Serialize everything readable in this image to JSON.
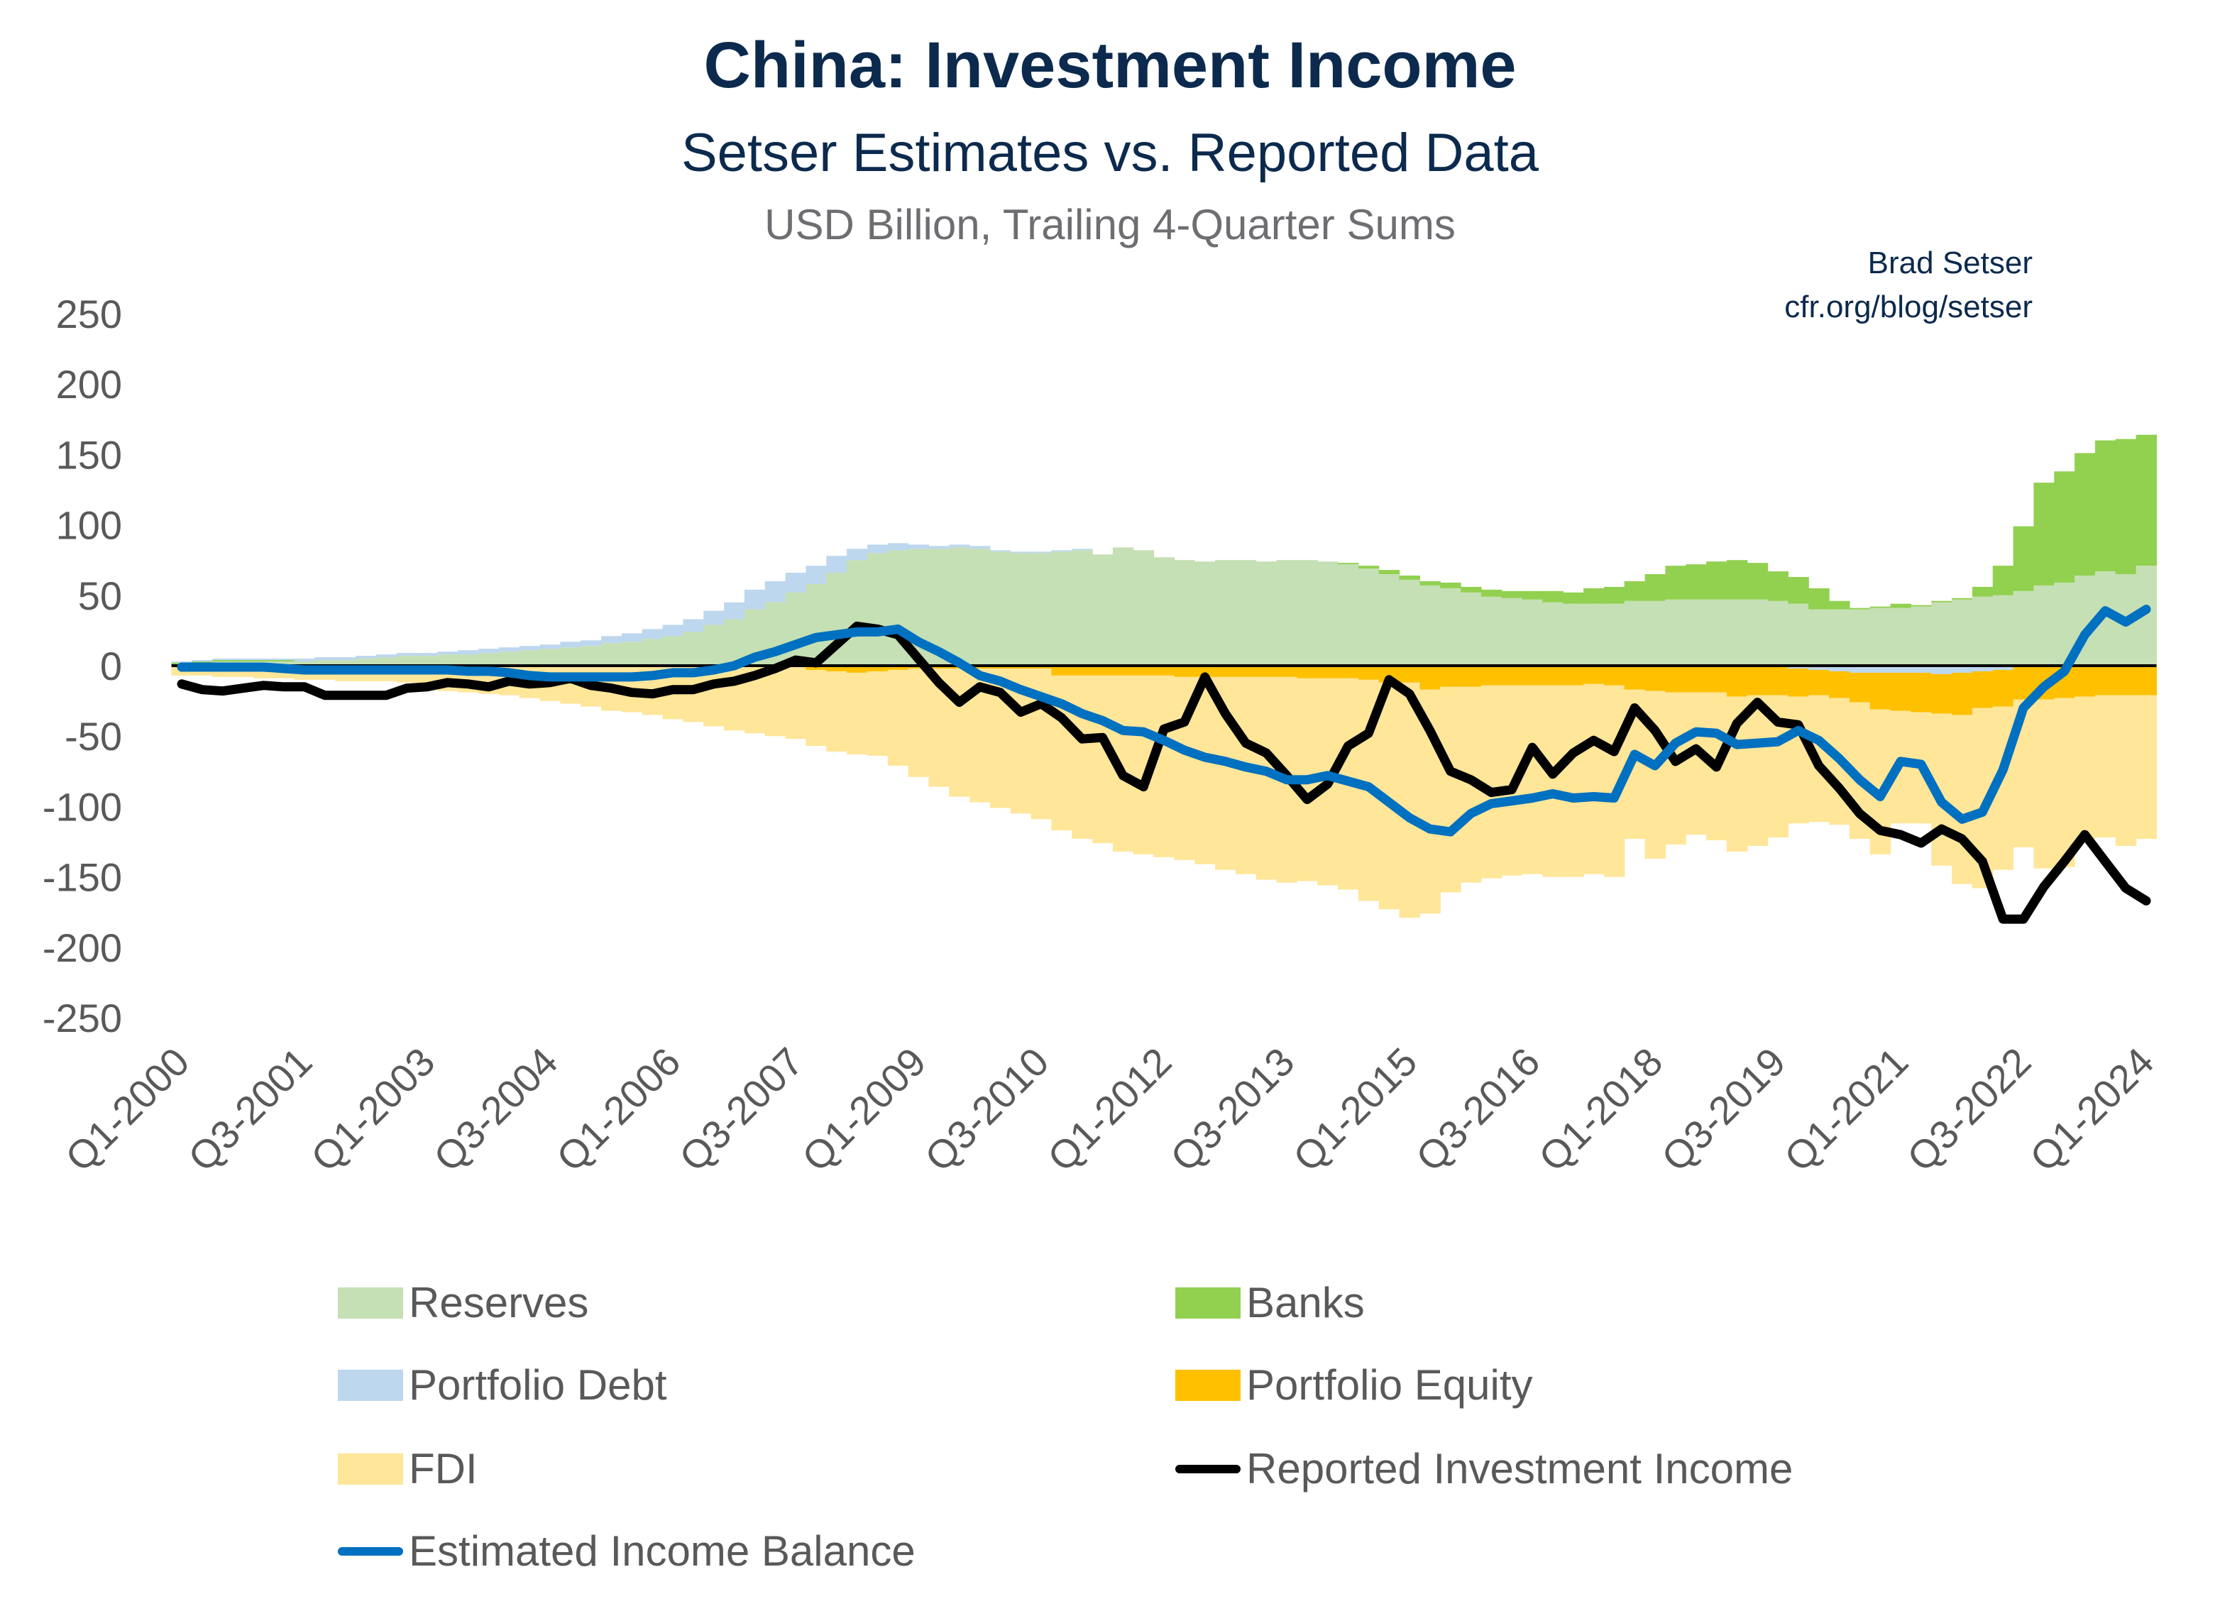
{
  "chart_data": {
    "type": "area",
    "title": "China: Investment Income",
    "subtitle": "Setser Estimates vs. Reported Data",
    "units_note": "USD Billion, Trailing 4-Quarter Sums",
    "attribution": [
      "Brad Setser",
      "cfr.org/blog/setser"
    ],
    "xlabel": "",
    "ylabel": "",
    "ylim": [
      -250,
      250
    ],
    "y_ticks": [
      "250",
      "200",
      "150",
      "100",
      "50",
      "0",
      "-50",
      "-100",
      "-150",
      "-200",
      "-250"
    ],
    "y_tick_values": [
      250,
      200,
      150,
      100,
      50,
      0,
      -50,
      -100,
      -150,
      -200,
      -250
    ],
    "x_tick_labels": [
      "Q1-2000",
      "Q3-2001",
      "Q1-2003",
      "Q3-2004",
      "Q1-2006",
      "Q3-2007",
      "Q1-2009",
      "Q3-2010",
      "Q1-2012",
      "Q3-2013",
      "Q1-2015",
      "Q3-2016",
      "Q1-2018",
      "Q3-2019",
      "Q1-2021",
      "Q3-2022",
      "Q1-2024"
    ],
    "x_range": [
      "Q1-2000",
      "Q1-2024"
    ],
    "grid": false,
    "legend_placement": "bottom",
    "stacked_series": [
      {
        "name": "Reserves",
        "color": "#c5e0b4",
        "values": [
          1,
          2,
          3,
          3,
          3,
          3,
          3,
          4,
          4,
          5,
          6,
          7,
          7,
          8,
          8,
          9,
          10,
          11,
          12,
          13,
          14,
          16,
          17,
          19,
          21,
          24,
          29,
          33,
          40,
          45,
          52,
          58,
          66,
          75,
          80,
          82,
          83,
          83,
          84,
          83,
          81,
          80,
          80,
          81,
          82,
          79,
          84,
          82,
          77,
          75,
          74,
          75,
          75,
          74,
          75,
          75,
          74,
          72,
          69,
          65,
          61,
          57,
          55,
          52,
          49,
          48,
          47,
          45,
          44,
          44,
          44,
          46,
          46,
          47,
          47,
          47,
          47,
          47,
          46,
          44,
          40,
          40,
          40,
          41,
          41,
          42,
          45,
          47,
          49,
          50,
          53,
          57,
          59,
          64,
          67,
          65,
          71
        ]
      },
      {
        "name": "Banks",
        "color": "#92d050",
        "values": [
          1,
          1,
          1,
          1,
          1,
          1,
          0,
          0,
          0,
          0,
          0,
          0,
          0,
          0,
          0,
          0,
          0,
          0,
          0,
          0,
          0,
          0,
          0,
          0,
          0,
          0,
          0,
          0,
          0,
          0,
          0,
          0,
          0,
          0,
          0,
          0,
          0,
          0,
          0,
          0,
          0,
          0,
          0,
          0,
          0,
          0,
          0,
          0,
          0,
          0,
          0,
          0,
          0,
          0,
          0,
          0,
          0,
          1,
          2,
          3,
          3,
          3,
          4,
          4,
          5,
          5,
          6,
          8,
          8,
          11,
          12,
          14,
          19,
          24,
          25,
          27,
          28,
          26,
          21,
          19,
          15,
          6,
          1,
          1,
          3,
          1,
          1,
          1,
          7,
          21,
          46,
          73,
          79,
          87,
          93,
          96,
          93
        ]
      },
      {
        "name": "Portfolio Debt",
        "color": "#bdd7ee",
        "values": [
          1,
          1,
          1,
          1,
          1,
          1,
          2,
          2,
          2,
          2,
          2,
          2,
          2,
          2,
          3,
          3,
          3,
          3,
          3,
          4,
          4,
          5,
          6,
          7,
          8,
          9,
          10,
          12,
          14,
          15,
          14,
          13,
          12,
          8,
          6,
          5,
          3,
          2,
          2,
          2,
          1,
          1,
          1,
          1,
          1,
          0,
          0,
          0,
          0,
          0,
          0,
          0,
          0,
          0,
          0,
          0,
          0,
          0,
          0,
          0,
          0,
          0,
          0,
          0,
          0,
          0,
          0,
          0,
          0,
          0,
          0,
          0,
          0,
          0,
          0,
          0,
          0,
          0,
          0,
          -2,
          -3,
          -4,
          -5,
          -5,
          -5,
          -5,
          -6,
          -5,
          -4,
          -3,
          0,
          0,
          0,
          0,
          0,
          0,
          0
        ]
      },
      {
        "name": "Portfolio Equity",
        "color": "#ffc000",
        "values": [
          -1,
          -1,
          -1,
          -1,
          -1,
          -1,
          -1,
          -1,
          -1,
          -1,
          -1,
          -1,
          -1,
          -1,
          -1,
          -1,
          -1,
          -1,
          -1,
          -1,
          -1,
          -1,
          -1,
          -1,
          -1,
          -1,
          -1,
          -1,
          -1,
          -1,
          -1,
          -3,
          -4,
          -5,
          -4,
          -3,
          -2,
          -2,
          -2,
          -2,
          -2,
          -2,
          -2,
          -7,
          -7,
          -7,
          -7,
          -7,
          -7,
          -8,
          -8,
          -8,
          -8,
          -8,
          -8,
          -9,
          -9,
          -9,
          -10,
          -12,
          -12,
          -17,
          -15,
          -15,
          -14,
          -14,
          -14,
          -14,
          -14,
          -13,
          -14,
          -17,
          -18,
          -19,
          -19,
          -19,
          -22,
          -21,
          -21,
          -20,
          -18,
          -19,
          -21,
          -26,
          -27,
          -28,
          -28,
          -30,
          -26,
          -26,
          -24,
          -24,
          -23,
          -22,
          -21,
          -21,
          -21
        ]
      },
      {
        "name": "FDI",
        "color": "#ffe699",
        "values": [
          -6,
          -6,
          -7,
          -7,
          -8,
          -8,
          -9,
          -9,
          -10,
          -10,
          -10,
          -11,
          -13,
          -17,
          -18,
          -19,
          -20,
          -22,
          -24,
          -26,
          -28,
          -31,
          -32,
          -34,
          -37,
          -39,
          -42,
          -45,
          -47,
          -49,
          -51,
          -54,
          -57,
          -58,
          -60,
          -68,
          -77,
          -84,
          -91,
          -95,
          -99,
          -103,
          -107,
          -110,
          -116,
          -119,
          -125,
          -127,
          -129,
          -130,
          -133,
          -137,
          -140,
          -144,
          -146,
          -144,
          -147,
          -150,
          -157,
          -161,
          -167,
          -159,
          -146,
          -139,
          -137,
          -135,
          -134,
          -136,
          -136,
          -135,
          -136,
          -106,
          -119,
          -108,
          -101,
          -105,
          -110,
          -107,
          -101,
          -90,
          -90,
          -90,
          -97,
          -103,
          -80,
          -79,
          -108,
          -120,
          -128,
          -116,
          -105,
          -120,
          -120,
          -101,
          -101,
          -107,
          -102
        ]
      }
    ],
    "line_series": [
      {
        "name": "Reported Investment Income",
        "color": "#000000",
        "values": [
          -13,
          -17,
          -18,
          -16,
          -14,
          -15,
          -15,
          -21,
          -21,
          -21,
          -21,
          -16,
          -15,
          -12,
          -13,
          -15,
          -11,
          -13,
          -12,
          -9,
          -14,
          -16,
          -19,
          -20,
          -17,
          -17,
          -13,
          -11,
          -7,
          -2,
          4,
          2,
          15,
          28,
          26,
          22,
          5,
          -12,
          -26,
          -15,
          -19,
          -33,
          -27,
          -37,
          -52,
          -51,
          -78,
          -86,
          -45,
          -40,
          -8,
          -34,
          -55,
          -62,
          -78,
          -95,
          -84,
          -57,
          -48,
          -10,
          -20,
          -46,
          -75,
          -81,
          -90,
          -88,
          -58,
          -77,
          -62,
          -53,
          -61,
          -30,
          -46,
          -68,
          -59,
          -72,
          -41,
          -26,
          -40,
          -42,
          -71,
          -87,
          -105,
          -117,
          -120,
          -126,
          -116,
          -123,
          -139,
          -180,
          -180,
          -157,
          -139,
          -120,
          -139,
          -158,
          -167
        ]
      },
      {
        "name": "Estimated Income Balance",
        "color": "#0070c0",
        "values": [
          -1,
          -1,
          -1,
          -1,
          -1,
          -2,
          -3,
          -3,
          -3,
          -3,
          -3,
          -3,
          -3,
          -3,
          -4,
          -4,
          -5,
          -7,
          -8,
          -8,
          -8,
          -8,
          -8,
          -7,
          -5,
          -5,
          -3,
          0,
          6,
          10,
          15,
          20,
          22,
          24,
          24,
          26,
          17,
          10,
          2,
          -7,
          -11,
          -17,
          -22,
          -27,
          -34,
          -39,
          -46,
          -47,
          -53,
          -60,
          -65,
          -68,
          -72,
          -75,
          -81,
          -81,
          -78,
          -82,
          -86,
          -97,
          -108,
          -116,
          -118,
          -105,
          -98,
          -96,
          -94,
          -91,
          -94,
          -93,
          -94,
          -63,
          -71,
          -55,
          -47,
          -48,
          -56,
          -55,
          -54,
          -46,
          -53,
          -66,
          -81,
          -93,
          -68,
          -70,
          -97,
          -109,
          -104,
          -74,
          -30,
          -15,
          -4,
          22,
          39,
          31,
          40
        ]
      }
    ]
  },
  "legend": [
    {
      "label": "Reserves",
      "kind": "area",
      "color": "#c5e0b4"
    },
    {
      "label": "Banks",
      "kind": "area",
      "color": "#92d050"
    },
    {
      "label": "Portfolio Debt",
      "kind": "area",
      "color": "#bdd7ee"
    },
    {
      "label": "Portfolio Equity",
      "kind": "area",
      "color": "#ffc000"
    },
    {
      "label": "FDI",
      "kind": "area",
      "color": "#ffe699"
    },
    {
      "label": "Reported Investment Income",
      "kind": "line",
      "color": "#000000"
    },
    {
      "label": "Estimated Income Balance",
      "kind": "line",
      "color": "#0070c0"
    }
  ]
}
